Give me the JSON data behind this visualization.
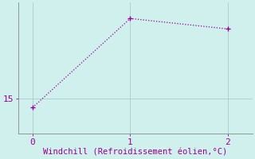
{
  "x": [
    0,
    1,
    2
  ],
  "y": [
    14.5,
    19.6,
    19.0
  ],
  "line_color": "#990099",
  "bg_color": "#cff0ec",
  "grid_color": "#aacccc",
  "axis_color": "#888888",
  "text_color": "#990099",
  "xlabel": "Windchill (Refroidissement éolien,°C)",
  "xticks": [
    0,
    1,
    2
  ],
  "yticks": [
    15
  ],
  "xlim": [
    -0.15,
    2.25
  ],
  "ylim": [
    13.0,
    20.5
  ],
  "marker_size": 4,
  "xlabel_fontsize": 7.5,
  "tick_fontsize": 8
}
